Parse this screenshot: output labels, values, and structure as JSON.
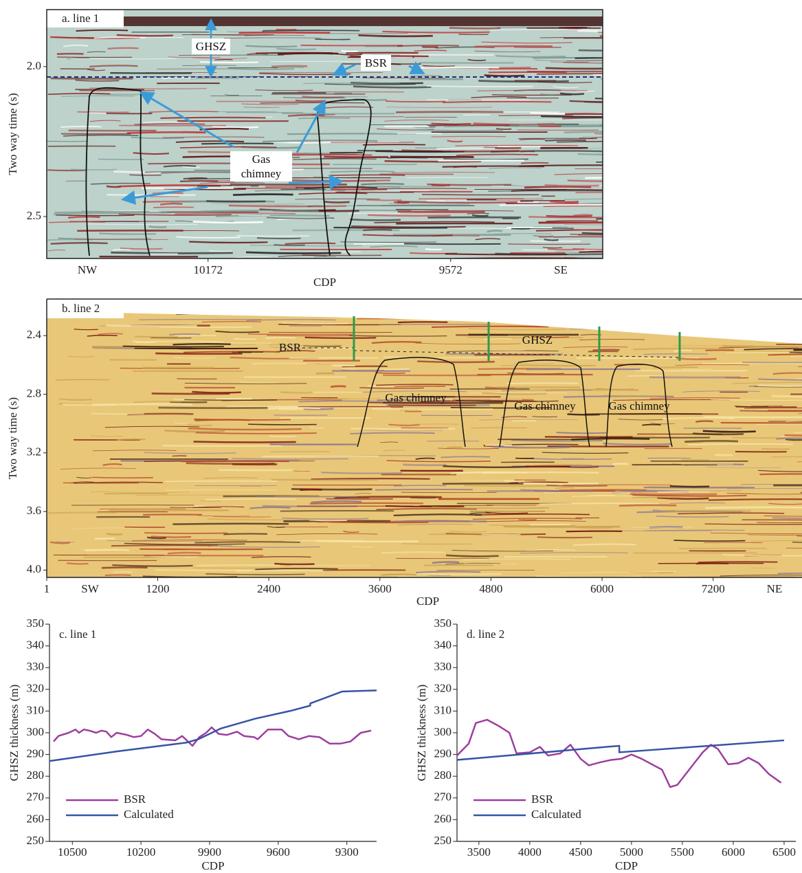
{
  "chart_data": [
    {
      "type": "seismic",
      "title": "a. line 1",
      "ylabel": "Two way time (s)",
      "xlabel": "CDP",
      "ylim": [
        1.81,
        2.64
      ],
      "yticks": [
        {
          "value": 2,
          "label": "2.0"
        },
        2.5
      ],
      "xlim": [
        10571,
        9196
      ],
      "xticks": [
        10172,
        9572
      ],
      "direction_labels": [
        "NW",
        "SE"
      ],
      "annotations": [
        "GHSZ",
        "BSR",
        "Gas chimney"
      ]
    },
    {
      "type": "seismic",
      "title": "b. line 2",
      "ylabel": "Two way time (s)",
      "xlabel": "CDP",
      "ylim": [
        2.15,
        4.05
      ],
      "yticks": [
        2.4,
        2.8,
        3.2,
        3.6,
        {
          "value": 4,
          "label": "4.0"
        }
      ],
      "xlim": [
        1,
        8160
      ],
      "xticks": [
        1,
        1200,
        2400,
        3600,
        4800,
        6000,
        7200
      ],
      "direction_labels": [
        "SW",
        "NE"
      ],
      "annotations": [
        "BSR",
        "GHSZ",
        "Gas chimney",
        "Gas chimney",
        "Gas chimney"
      ]
    },
    {
      "type": "line",
      "title": "c. line 1",
      "ylabel": "GHSZ thickness (m)",
      "xlabel": "CDP",
      "ylim": [
        250,
        350
      ],
      "yticks": [
        250,
        260,
        270,
        280,
        290,
        300,
        310,
        320,
        330,
        340,
        350
      ],
      "xlim": [
        10600,
        9170
      ],
      "xticks": [
        10500,
        10200,
        9900,
        9600,
        9300
      ],
      "series": [
        {
          "name": "BSR",
          "color": "#9c3f9e",
          "x": [
            10582,
            10561,
            10516,
            10486,
            10471,
            10450,
            10426,
            10396,
            10372,
            10351,
            10330,
            10306,
            10261,
            10231,
            10200,
            10170,
            10140,
            10110,
            10050,
            10020,
            9975,
            9945,
            9915,
            9891,
            9861,
            9825,
            9780,
            9750,
            9705,
            9690,
            9645,
            9585,
            9555,
            9510,
            9465,
            9420,
            9375,
            9329,
            9284,
            9239,
            9194
          ],
          "values": [
            296,
            298.5,
            300,
            301.5,
            300,
            301.5,
            301,
            300,
            301,
            300.5,
            298,
            300,
            299,
            298,
            298.5,
            301.5,
            299.5,
            297,
            296.5,
            298.5,
            294,
            298,
            300,
            302.5,
            299.5,
            299,
            300.5,
            298.5,
            298,
            297,
            301.5,
            301.5,
            298.5,
            297,
            298.5,
            298,
            295,
            295,
            296,
            300,
            301
          ]
        },
        {
          "name": "Calculated",
          "color": "#3653a6",
          "x": [
            10600,
            10300,
            10000,
            9950,
            9850,
            9700,
            9550,
            9460,
            9460,
            9320,
            9170
          ],
          "values": [
            287,
            291.5,
            295.5,
            297,
            302,
            306.5,
            310,
            312.5,
            313.5,
            319,
            319.5
          ]
        }
      ]
    },
    {
      "type": "line",
      "title": "d. line 2",
      "ylabel": "GHSZ thickness (m)",
      "xlabel": "CDP",
      "ylim": [
        250,
        350
      ],
      "yticks": [
        250,
        260,
        270,
        280,
        290,
        300,
        310,
        320,
        330,
        340,
        350
      ],
      "xlim": [
        3285,
        6615
      ],
      "xticks": [
        3500,
        4000,
        4500,
        5000,
        5500,
        6000,
        6500
      ],
      "series": [
        {
          "name": "BSR",
          "color": "#9c3f9e",
          "x": [
            3285,
            3400,
            3470,
            3580,
            3700,
            3800,
            3870,
            4000,
            4100,
            4180,
            4300,
            4400,
            4500,
            4580,
            4700,
            4800,
            4900,
            5000,
            5100,
            5300,
            5380,
            5450,
            5600,
            5700,
            5780,
            5850,
            5950,
            6050,
            6150,
            6250,
            6350,
            6470
          ],
          "values": [
            289.5,
            295,
            304.5,
            306,
            303,
            300,
            290.5,
            291,
            293.5,
            289.5,
            290.5,
            294.5,
            288,
            285,
            286.5,
            287.5,
            288,
            290,
            288,
            283,
            275,
            276,
            285,
            291,
            294.5,
            292.5,
            285.5,
            286,
            288.5,
            286,
            281,
            277
          ]
        },
        {
          "name": "Calculated",
          "color": "#3653a6",
          "x": [
            3285,
            4880,
            4880,
            6500
          ],
          "values": [
            287.5,
            294,
            291,
            296.5
          ]
        }
      ]
    }
  ]
}
